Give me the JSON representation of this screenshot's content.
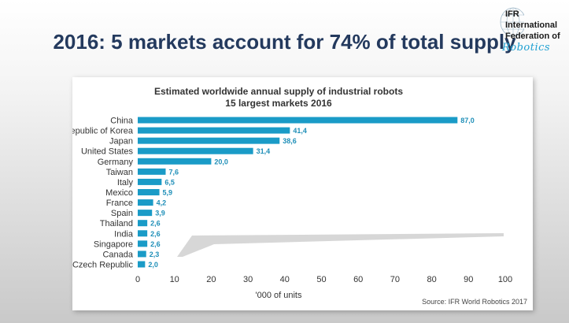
{
  "slide": {
    "title": "2016: 5 markets account for 74% of total supply"
  },
  "logo": {
    "line1": "IFR",
    "line2": "International",
    "line3": "Federation of",
    "script": "Robotics",
    "icon": "globe-icon"
  },
  "chart_data": {
    "type": "bar",
    "orientation": "horizontal",
    "title": "Estimated worldwide  annual supply of industrial robots",
    "subtitle": "15 largest markets 2016",
    "xlabel": "'000 of units",
    "ylabel": "",
    "xlim": [
      0,
      100
    ],
    "ticks": [
      "0",
      "10",
      "20",
      "30",
      "40",
      "50",
      "60",
      "70",
      "80",
      "90",
      "100"
    ],
    "grid": false,
    "categories": [
      "China",
      "Republic of Korea",
      "Japan",
      "United States",
      "Germany",
      "Taiwan",
      "Italy",
      "Mexico",
      "France",
      "Spain",
      "Thailand",
      "India",
      "Singapore",
      "Canada",
      "Czech Republic"
    ],
    "values": [
      87.0,
      41.4,
      38.6,
      31.4,
      20.0,
      7.6,
      6.5,
      5.9,
      4.2,
      3.9,
      2.6,
      2.6,
      2.6,
      2.3,
      2.0
    ],
    "value_labels": [
      "87,0",
      "41,4",
      "38,6",
      "31,4",
      "20,0",
      "7,6",
      "6,5",
      "5,9",
      "4,2",
      "3,9",
      "2,6",
      "2,6",
      "2,6",
      "2,3",
      "2,0"
    ],
    "source": "Source: IFR World Robotics 2017",
    "bar_color": "#1a9bc7",
    "label_color": "#1f8fb8"
  }
}
